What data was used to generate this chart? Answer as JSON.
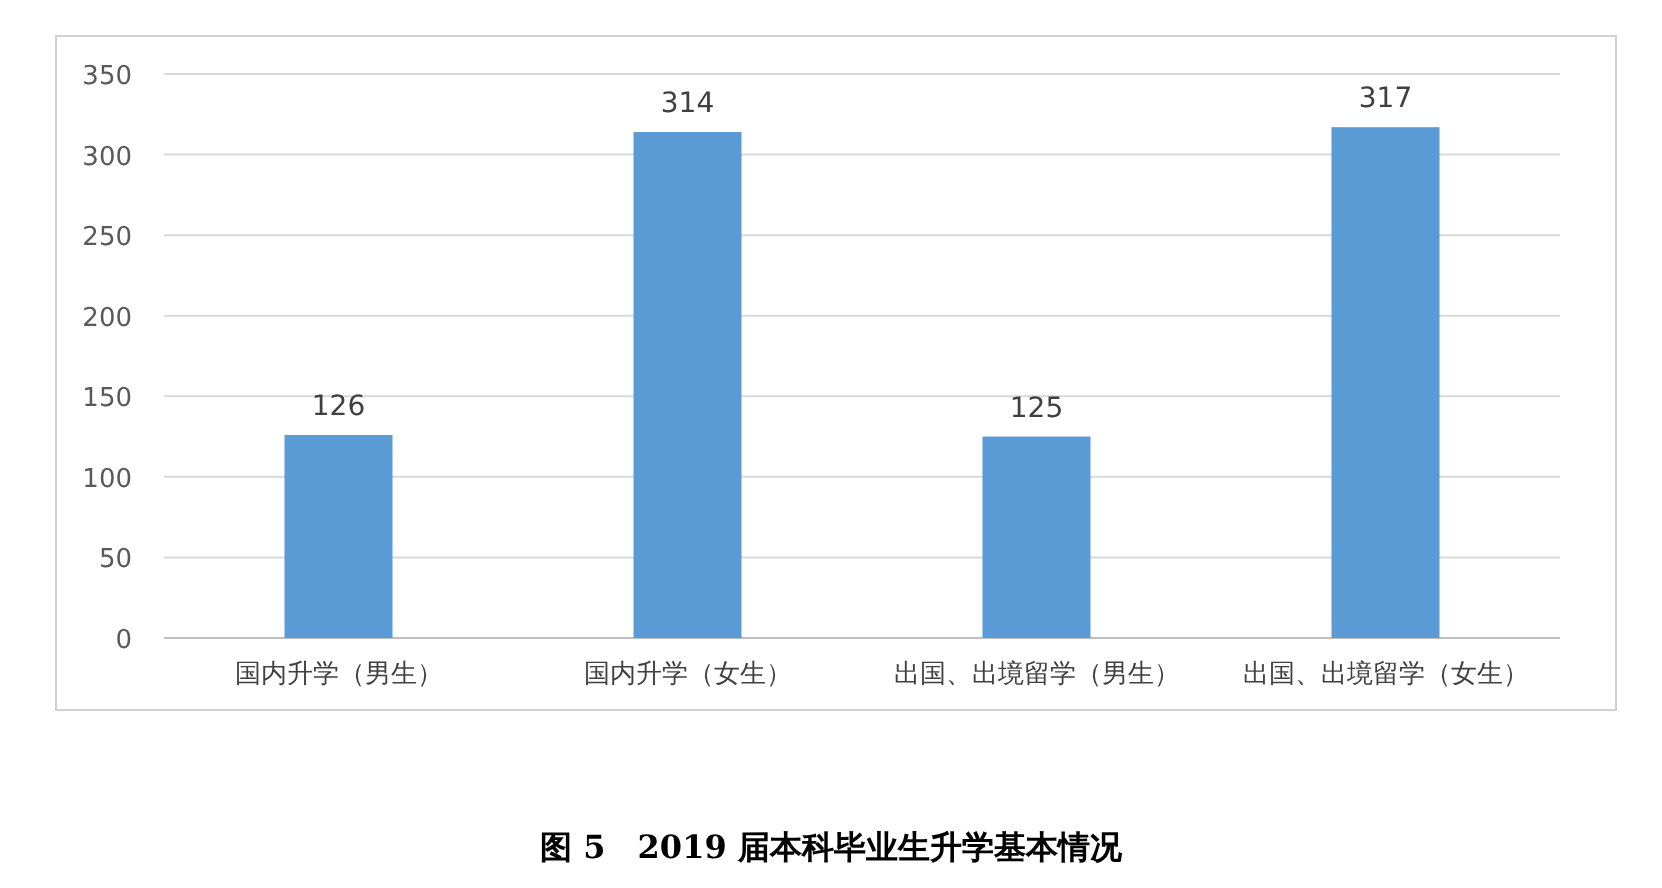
{
  "chart_data": {
    "type": "bar",
    "title": "图 5　2019 届本科毕业生升学基本情况",
    "categories": [
      "国内升学（男生）",
      "国内升学（女生）",
      "出国、出境留学（男生）",
      "出国、出境留学（女生）"
    ],
    "values": [
      126,
      314,
      125,
      317
    ],
    "color": "#5b9bd5",
    "data_labels": true,
    "grid": "y",
    "ylim": [
      0,
      350
    ],
    "yticks": [
      0,
      50,
      100,
      150,
      200,
      250,
      300,
      350
    ]
  }
}
